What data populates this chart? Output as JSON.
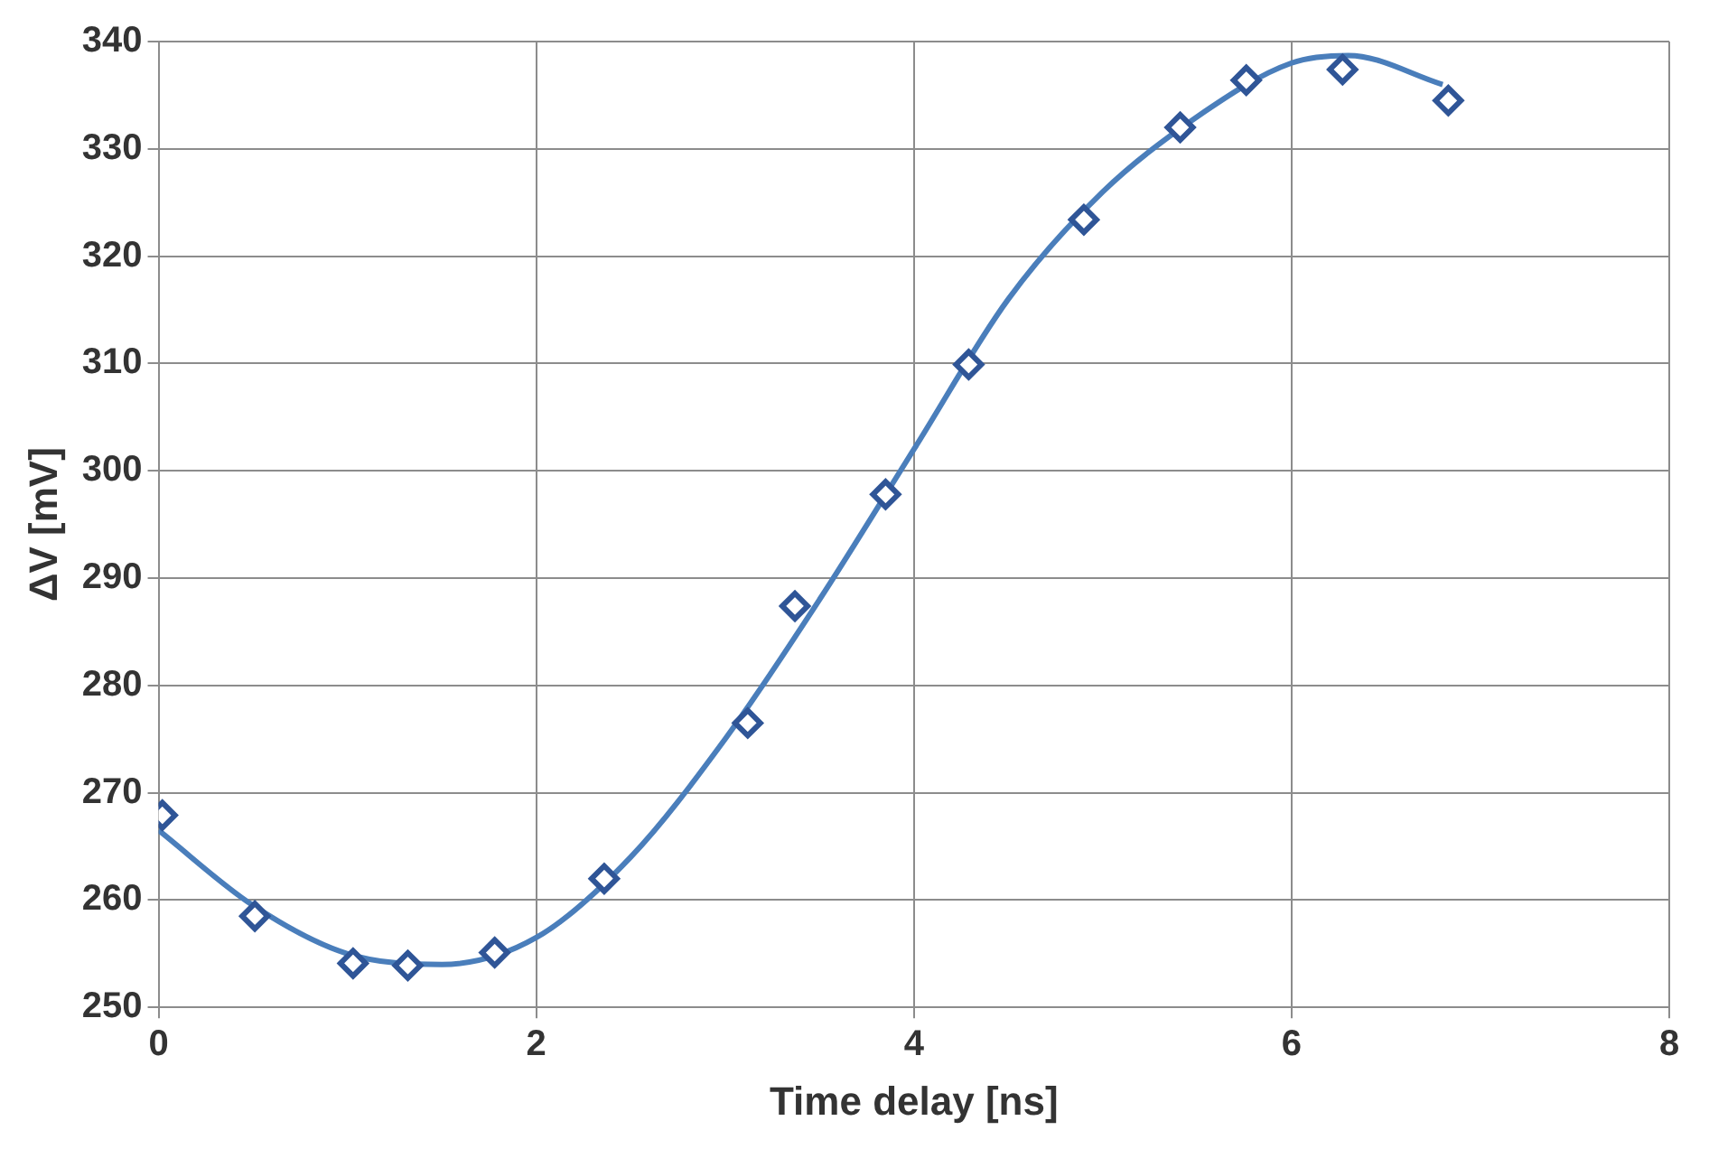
{
  "chart_data": {
    "type": "scatter",
    "xlabel": "Time delay [ns]",
    "ylabel": "ΔV [mV]",
    "series": [
      {
        "type": "line",
        "color": "#4a7ebb",
        "marker": "none",
        "line_style": "solid",
        "x": [
          0,
          0.5,
          1,
          1.5,
          2,
          2.5,
          3,
          3.5,
          4,
          4.5,
          5,
          5.5,
          6,
          6.3,
          6.8
        ],
        "values": [
          266.5,
          259.5,
          255,
          254,
          256.5,
          264,
          275,
          288,
          302,
          316,
          326,
          333,
          338,
          338.7,
          336
        ]
      },
      {
        "type": "scatter",
        "color": "#2f5597",
        "marker": "diamond",
        "x": [
          0.02,
          0.51,
          1.03,
          1.32,
          1.78,
          2.36,
          3.12,
          3.37,
          3.85,
          4.29,
          4.9,
          5.41,
          5.76,
          6.27,
          6.83
        ],
        "values": [
          267.9,
          258.5,
          254.1,
          253.9,
          255.1,
          262,
          276.5,
          287.4,
          297.8,
          309.9,
          323.4,
          332,
          336.4,
          337.4,
          334.5
        ]
      }
    ],
    "xlim": [
      0,
      8
    ],
    "xticks": [
      0,
      2,
      4,
      6,
      8
    ],
    "ylim": [
      250,
      340
    ],
    "yticks": [
      250,
      260,
      270,
      280,
      290,
      300,
      310,
      320,
      330,
      340
    ],
    "grid": true,
    "legend": false
  }
}
